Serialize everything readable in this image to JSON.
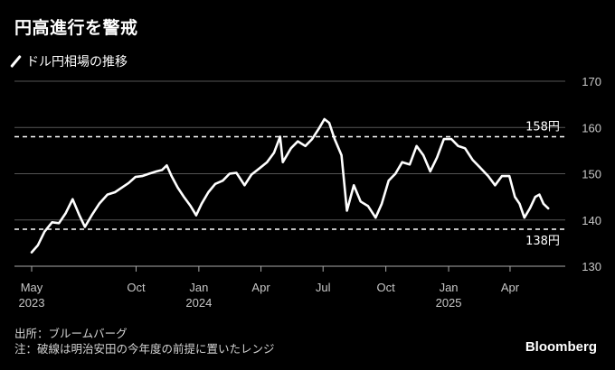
{
  "title": "円高進行を警戒",
  "legend": {
    "label": "ドル円相場の推移",
    "color": "#ffffff"
  },
  "footer": {
    "source": "出所：ブルームバーグ",
    "note": "注：破線は明治安田の今年度の前提に置いたレンジ"
  },
  "brand": "Bloomberg",
  "chart_data": {
    "type": "line",
    "ylim": [
      130,
      170
    ],
    "yticks": [
      "130",
      "140",
      "150",
      "160",
      "170"
    ],
    "grid": true,
    "xlim": [
      "2023-05-01",
      "2025-06-01"
    ],
    "xticks": [
      {
        "date": "2023-05-01",
        "label": "May",
        "sub": "2023"
      },
      {
        "date": "2023-10-01",
        "label": "Oct",
        "sub": ""
      },
      {
        "date": "2024-01-01",
        "label": "Jan",
        "sub": "2024"
      },
      {
        "date": "2024-04-01",
        "label": "Apr",
        "sub": ""
      },
      {
        "date": "2024-07-01",
        "label": "Jul",
        "sub": ""
      },
      {
        "date": "2024-10-01",
        "label": "Oct",
        "sub": ""
      },
      {
        "date": "2025-01-01",
        "label": "Jan",
        "sub": "2025"
      },
      {
        "date": "2025-04-01",
        "label": "Apr",
        "sub": ""
      }
    ],
    "reference_lines": [
      {
        "value": 158,
        "label": "158円",
        "style": "dashed"
      },
      {
        "value": 138,
        "label": "138円",
        "style": "dashed"
      }
    ],
    "series": [
      {
        "color": "#ffffff",
        "points": [
          [
            "2023-05-01",
            133.0
          ],
          [
            "2023-05-10",
            134.5
          ],
          [
            "2023-05-20",
            137.5
          ],
          [
            "2023-05-31",
            139.5
          ],
          [
            "2023-06-10",
            139.3
          ],
          [
            "2023-06-20",
            141.5
          ],
          [
            "2023-06-30",
            144.5
          ],
          [
            "2023-07-10",
            141.0
          ],
          [
            "2023-07-18",
            138.5
          ],
          [
            "2023-07-28",
            141.0
          ],
          [
            "2023-08-08",
            143.5
          ],
          [
            "2023-08-20",
            145.5
          ],
          [
            "2023-08-31",
            146.0
          ],
          [
            "2023-09-10",
            147.0
          ],
          [
            "2023-09-20",
            148.0
          ],
          [
            "2023-09-30",
            149.3
          ],
          [
            "2023-10-10",
            149.5
          ],
          [
            "2023-10-20",
            150.0
          ],
          [
            "2023-10-31",
            150.5
          ],
          [
            "2023-11-08",
            150.8
          ],
          [
            "2023-11-15",
            151.8
          ],
          [
            "2023-11-22",
            149.5
          ],
          [
            "2023-12-01",
            147.0
          ],
          [
            "2023-12-10",
            145.0
          ],
          [
            "2023-12-20",
            143.0
          ],
          [
            "2023-12-28",
            141.0
          ],
          [
            "2024-01-05",
            143.5
          ],
          [
            "2024-01-15",
            146.0
          ],
          [
            "2024-01-25",
            147.8
          ],
          [
            "2024-02-05",
            148.5
          ],
          [
            "2024-02-15",
            150.0
          ],
          [
            "2024-02-25",
            150.2
          ],
          [
            "2024-03-08",
            147.5
          ],
          [
            "2024-03-18",
            149.8
          ],
          [
            "2024-03-31",
            151.3
          ],
          [
            "2024-04-10",
            152.5
          ],
          [
            "2024-04-20",
            154.5
          ],
          [
            "2024-04-29",
            158.0
          ],
          [
            "2024-05-03",
            152.5
          ],
          [
            "2024-05-15",
            155.5
          ],
          [
            "2024-05-25",
            157.0
          ],
          [
            "2024-06-05",
            156.0
          ],
          [
            "2024-06-15",
            157.5
          ],
          [
            "2024-06-25",
            159.8
          ],
          [
            "2024-07-03",
            161.8
          ],
          [
            "2024-07-10",
            161.0
          ],
          [
            "2024-07-18",
            157.5
          ],
          [
            "2024-07-28",
            154.0
          ],
          [
            "2024-08-05",
            142.0
          ],
          [
            "2024-08-15",
            147.5
          ],
          [
            "2024-08-25",
            144.0
          ],
          [
            "2024-09-05",
            143.0
          ],
          [
            "2024-09-16",
            140.5
          ],
          [
            "2024-09-25",
            143.5
          ],
          [
            "2024-10-05",
            148.5
          ],
          [
            "2024-10-15",
            150.0
          ],
          [
            "2024-10-25",
            152.5
          ],
          [
            "2024-11-05",
            152.0
          ],
          [
            "2024-11-15",
            156.0
          ],
          [
            "2024-11-25",
            154.0
          ],
          [
            "2024-12-05",
            150.5
          ],
          [
            "2024-12-15",
            153.5
          ],
          [
            "2024-12-25",
            157.5
          ],
          [
            "2025-01-05",
            157.5
          ],
          [
            "2025-01-15",
            156.0
          ],
          [
            "2025-01-25",
            155.5
          ],
          [
            "2025-02-05",
            153.0
          ],
          [
            "2025-02-15",
            151.5
          ],
          [
            "2025-02-28",
            149.5
          ],
          [
            "2025-03-10",
            147.5
          ],
          [
            "2025-03-20",
            149.5
          ],
          [
            "2025-03-31",
            149.5
          ],
          [
            "2025-04-08",
            145.0
          ],
          [
            "2025-04-15",
            143.5
          ],
          [
            "2025-04-22",
            140.5
          ],
          [
            "2025-04-30",
            142.5
          ],
          [
            "2025-05-08",
            145.0
          ],
          [
            "2025-05-14",
            145.5
          ],
          [
            "2025-05-20",
            143.5
          ],
          [
            "2025-05-27",
            142.5
          ]
        ]
      }
    ]
  }
}
